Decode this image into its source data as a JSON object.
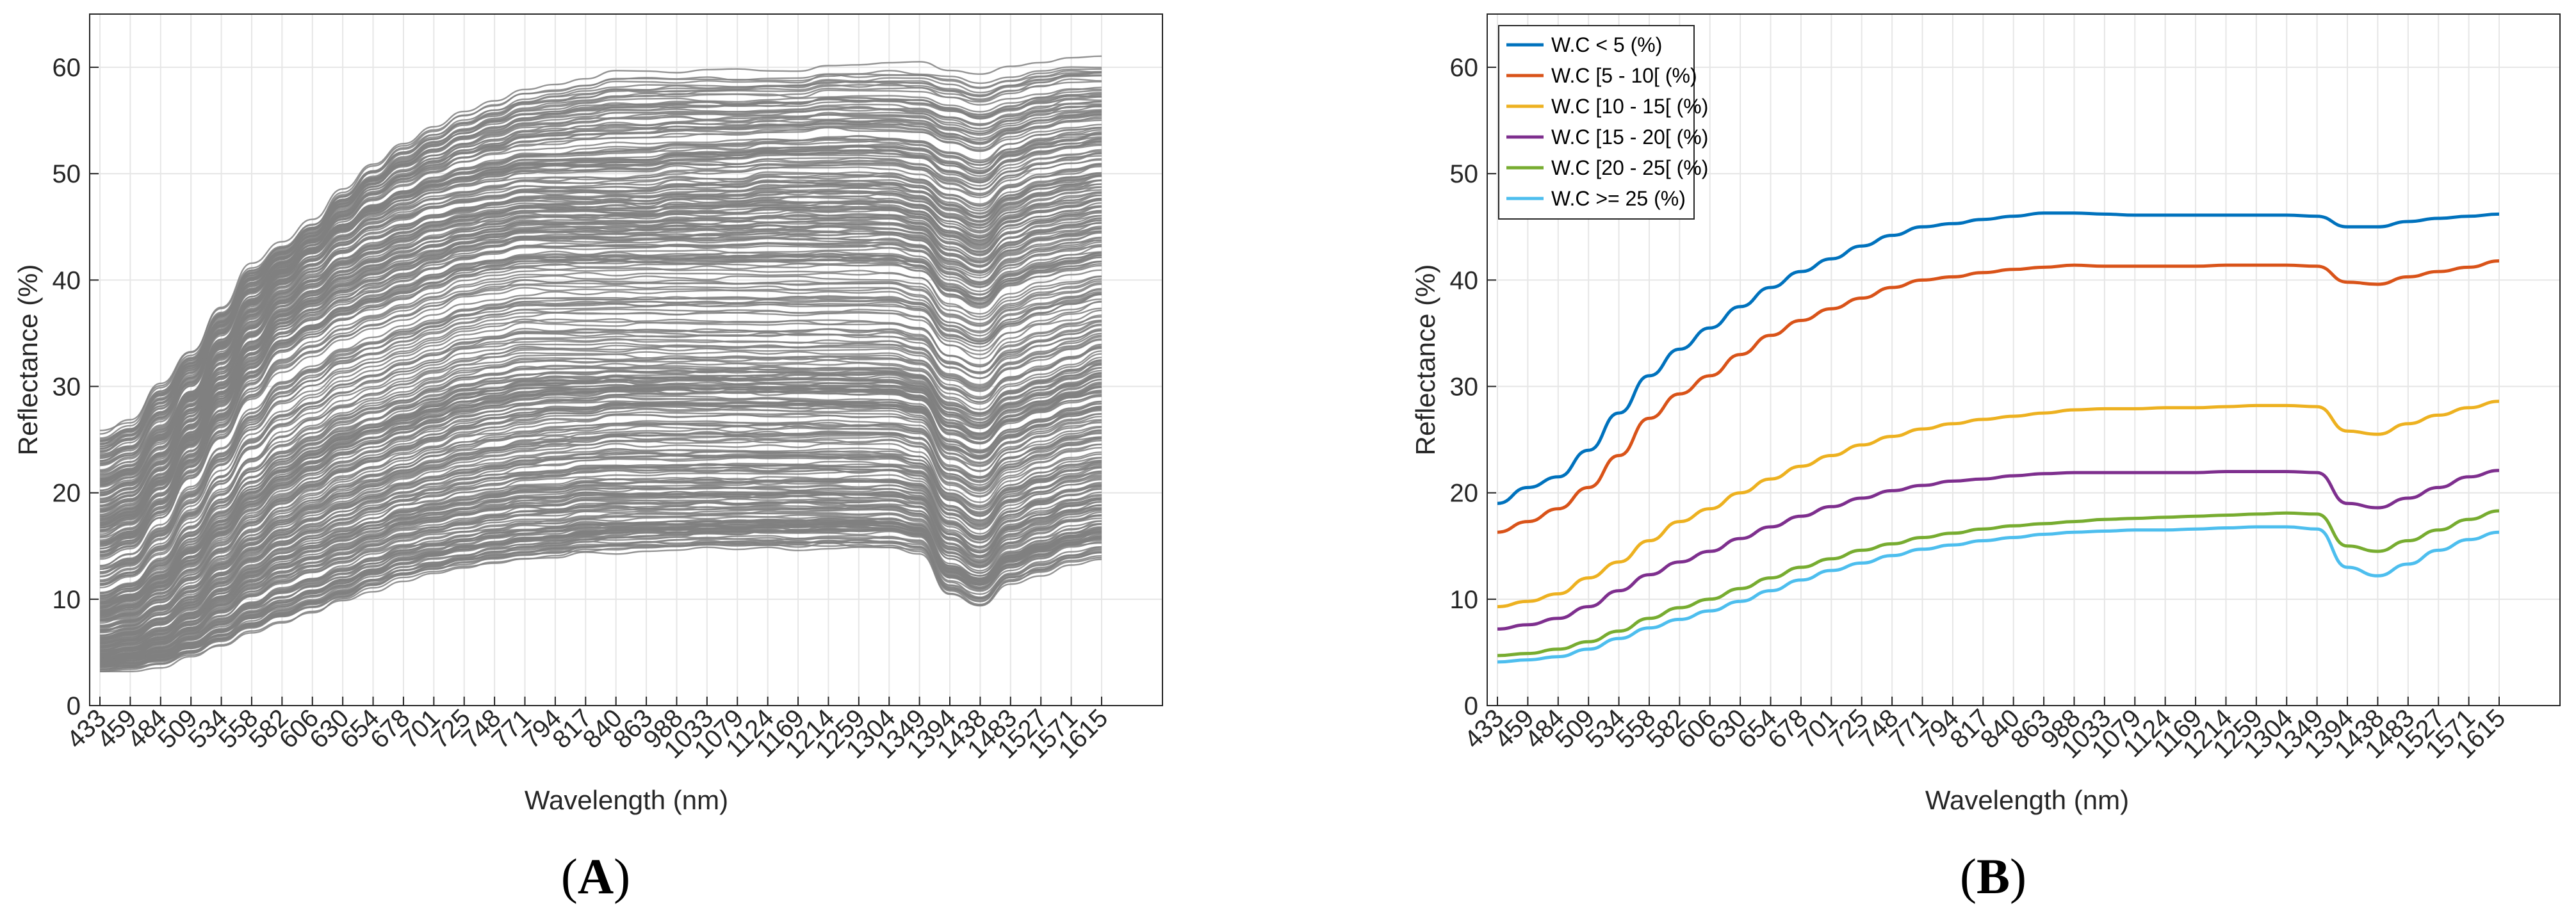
{
  "chart_data": [
    {
      "type": "line",
      "panel_label": [
        "(",
        "A",
        ")"
      ],
      "title": "",
      "xlabel": "Wavelength (nm)",
      "ylabel": "Reflectance (%)",
      "ylim": [
        0,
        65
      ],
      "yticks": [
        0,
        10,
        20,
        30,
        40,
        50,
        60
      ],
      "x_tick_labels": [
        "433",
        "459",
        "484",
        "509",
        "534",
        "558",
        "582",
        "606",
        "630",
        "654",
        "678",
        "701",
        "725",
        "748",
        "771",
        "794",
        "817",
        "840",
        "863",
        "988",
        "1033",
        "1079",
        "1124",
        "1169",
        "1214",
        "1259",
        "1304",
        "1349",
        "1394",
        "1438",
        "1483",
        "1527",
        "1571",
        "1615"
      ],
      "grid": true,
      "line_color": "#808080",
      "series_count_description": "individual soil spectra",
      "envelope_series": [
        {
          "name": "upper",
          "values": [
            25.5,
            26.5,
            30,
            33,
            37,
            41,
            43,
            45,
            48,
            50.5,
            52.5,
            54,
            55.5,
            56.5,
            57.5,
            58,
            58.5,
            59,
            59,
            59,
            59,
            59,
            59,
            59,
            59.5,
            59.5,
            59.5,
            59.5,
            59,
            58.5,
            59,
            59.5,
            60,
            60
          ]
        },
        {
          "name": "high",
          "values": [
            20,
            21,
            24,
            28,
            33,
            37,
            40,
            42,
            44,
            45.5,
            46.5,
            47.5,
            48,
            48.5,
            49,
            49,
            49,
            49,
            49,
            49.5,
            49.5,
            49.5,
            50,
            50,
            50,
            50,
            50,
            49.5,
            48,
            47,
            49,
            50,
            50.5,
            51
          ]
        },
        {
          "name": "mid-high",
          "values": [
            15,
            16,
            19,
            23,
            27,
            31,
            34,
            35.5,
            37,
            38,
            39,
            40,
            41,
            41.5,
            42,
            42,
            42,
            42,
            42,
            42,
            42,
            42,
            42,
            42,
            42,
            42,
            42,
            41.5,
            39,
            38,
            40,
            41,
            41.5,
            42
          ]
        },
        {
          "name": "mid",
          "values": [
            10,
            11,
            13,
            16,
            19,
            22,
            24,
            25.5,
            27,
            28,
            29,
            30,
            31,
            31.5,
            32,
            32,
            32,
            32,
            32,
            32,
            32,
            32,
            32,
            32,
            32,
            32,
            32,
            31.5,
            29,
            28,
            30,
            31,
            32,
            33
          ]
        },
        {
          "name": "mid-low",
          "values": [
            8,
            8.5,
            10,
            12,
            14.5,
            17,
            19,
            20.5,
            22,
            23,
            24,
            25,
            26,
            26.5,
            27,
            27.5,
            27.5,
            28,
            28,
            28,
            28,
            28,
            28,
            28,
            28,
            28,
            28,
            27.5,
            24,
            23,
            25,
            26,
            27,
            27.5
          ]
        },
        {
          "name": "low",
          "values": [
            5,
            5.5,
            6.5,
            8,
            10,
            12,
            13.5,
            14.5,
            15.5,
            16.5,
            17.5,
            18,
            18.5,
            19,
            19.5,
            19.5,
            20,
            20,
            20,
            20,
            20,
            20,
            20,
            20,
            20,
            20,
            20,
            19.5,
            16,
            14.5,
            17,
            18,
            19,
            19.5
          ]
        },
        {
          "name": "lower",
          "values": [
            3.5,
            3.6,
            4,
            4.8,
            5.8,
            7,
            8,
            9,
            10,
            11,
            12,
            12.6,
            13.2,
            13.6,
            14,
            14.3,
            14.6,
            14.8,
            15,
            15,
            15.2,
            15.2,
            15.3,
            15.3,
            15.4,
            15.4,
            15.4,
            15,
            11,
            10,
            12,
            13,
            14,
            14.5
          ]
        }
      ]
    },
    {
      "type": "line",
      "panel_label": [
        "(",
        "B",
        ")"
      ],
      "title": "",
      "xlabel": "Wavelength (nm)",
      "ylabel": "Reflectance (%)",
      "ylim": [
        0,
        65
      ],
      "yticks": [
        0,
        10,
        20,
        30,
        40,
        50,
        60
      ],
      "x_tick_labels": [
        "433",
        "459",
        "484",
        "509",
        "534",
        "558",
        "582",
        "606",
        "630",
        "654",
        "678",
        "701",
        "725",
        "748",
        "771",
        "794",
        "817",
        "840",
        "863",
        "988",
        "1033",
        "1079",
        "1124",
        "1169",
        "1214",
        "1259",
        "1304",
        "1349",
        "1394",
        "1438",
        "1483",
        "1527",
        "1571",
        "1615"
      ],
      "grid": true,
      "legend_position": "top-left",
      "series": [
        {
          "name": "W.C < 5 (%)",
          "color": "#0072BD",
          "values": [
            19,
            20.5,
            21.5,
            24,
            27.5,
            31,
            33.5,
            35.5,
            37.5,
            39.3,
            40.8,
            42,
            43.2,
            44.2,
            45,
            45.3,
            45.7,
            46,
            46.3,
            46.3,
            46.2,
            46.1,
            46.1,
            46.1,
            46.1,
            46.1,
            46.1,
            46,
            45,
            45,
            45.5,
            45.8,
            46,
            46.2
          ]
        },
        {
          "name": "W.C [5 - 10[ (%)",
          "color": "#D95319",
          "values": [
            16.3,
            17.3,
            18.5,
            20.5,
            23.5,
            27,
            29.3,
            31,
            33,
            34.8,
            36.2,
            37.3,
            38.3,
            39.3,
            40,
            40.3,
            40.7,
            41,
            41.2,
            41.4,
            41.3,
            41.3,
            41.3,
            41.3,
            41.4,
            41.4,
            41.4,
            41.3,
            39.8,
            39.6,
            40.3,
            40.8,
            41.2,
            41.8
          ]
        },
        {
          "name": "W.C [10 - 15[ (%)",
          "color": "#EDB120",
          "values": [
            9.3,
            9.8,
            10.5,
            12,
            13.5,
            15.5,
            17.3,
            18.5,
            20,
            21.3,
            22.5,
            23.5,
            24.5,
            25.3,
            26,
            26.5,
            26.9,
            27.2,
            27.5,
            27.8,
            27.9,
            27.9,
            28,
            28,
            28.1,
            28.2,
            28.2,
            28.1,
            25.8,
            25.5,
            26.5,
            27.3,
            28,
            28.6
          ]
        },
        {
          "name": "W.C [15 - 20[ (%)",
          "color": "#7E2F8E",
          "values": [
            7.2,
            7.6,
            8.2,
            9.3,
            10.8,
            12.3,
            13.5,
            14.5,
            15.7,
            16.8,
            17.8,
            18.7,
            19.5,
            20.2,
            20.7,
            21.1,
            21.3,
            21.6,
            21.8,
            21.9,
            21.9,
            21.9,
            21.9,
            21.9,
            22,
            22,
            22,
            21.9,
            19,
            18.6,
            19.5,
            20.5,
            21.5,
            22.1
          ]
        },
        {
          "name": "W.C [20 - 25[ (%)",
          "color": "#77AC30",
          "values": [
            4.7,
            4.9,
            5.3,
            6,
            7,
            8.2,
            9.2,
            10,
            11,
            12,
            13,
            13.8,
            14.6,
            15.2,
            15.8,
            16.2,
            16.6,
            16.9,
            17.1,
            17.3,
            17.5,
            17.6,
            17.7,
            17.8,
            17.9,
            18,
            18.1,
            18,
            15,
            14.5,
            15.5,
            16.5,
            17.5,
            18.3
          ]
        },
        {
          "name": "W.C >= 25 (%)",
          "color": "#4DBEEE",
          "values": [
            4.1,
            4.3,
            4.6,
            5.3,
            6.3,
            7.3,
            8.1,
            8.9,
            9.8,
            10.8,
            11.8,
            12.7,
            13.4,
            14.1,
            14.7,
            15.1,
            15.5,
            15.8,
            16.1,
            16.3,
            16.4,
            16.5,
            16.5,
            16.6,
            16.7,
            16.8,
            16.8,
            16.6,
            13,
            12.2,
            13.3,
            14.6,
            15.6,
            16.3
          ]
        }
      ]
    }
  ]
}
